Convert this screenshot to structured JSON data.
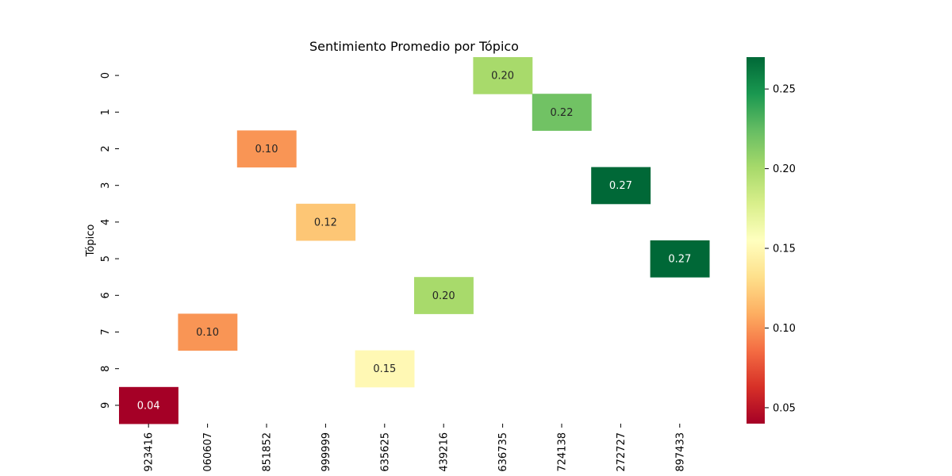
{
  "chart_data": {
    "type": "heatmap",
    "title": "Sentimiento Promedio por Tópico",
    "ylabel": "Tópico",
    "xlabel": "",
    "row_labels": [
      "0",
      "1",
      "2",
      "3",
      "4",
      "5",
      "6",
      "7",
      "8",
      "9"
    ],
    "column_labels": [
      "923416",
      "060607",
      "851852",
      "999999",
      "635625",
      "439216",
      "636735",
      "724138",
      "272727",
      "897433"
    ],
    "cells": [
      {
        "row": 0,
        "col": 6,
        "value": 0.2,
        "label": "0.20"
      },
      {
        "row": 1,
        "col": 7,
        "value": 0.22,
        "label": "0.22"
      },
      {
        "row": 2,
        "col": 2,
        "value": 0.1,
        "label": "0.10"
      },
      {
        "row": 3,
        "col": 8,
        "value": 0.27,
        "label": "0.27"
      },
      {
        "row": 4,
        "col": 3,
        "value": 0.12,
        "label": "0.12"
      },
      {
        "row": 5,
        "col": 9,
        "value": 0.27,
        "label": "0.27"
      },
      {
        "row": 6,
        "col": 5,
        "value": 0.2,
        "label": "0.20"
      },
      {
        "row": 7,
        "col": 1,
        "value": 0.1,
        "label": "0.10"
      },
      {
        "row": 8,
        "col": 4,
        "value": 0.15,
        "label": "0.15"
      },
      {
        "row": 9,
        "col": 0,
        "value": 0.04,
        "label": "0.04"
      }
    ],
    "colorbar": {
      "colormap": "RdYlGn",
      "range": [
        0.04,
        0.27
      ],
      "ticks": [
        0.05,
        0.1,
        0.15,
        0.2,
        0.25
      ],
      "tick_labels": [
        "0.05",
        "0.10",
        "0.15",
        "0.20",
        "0.25"
      ]
    }
  }
}
